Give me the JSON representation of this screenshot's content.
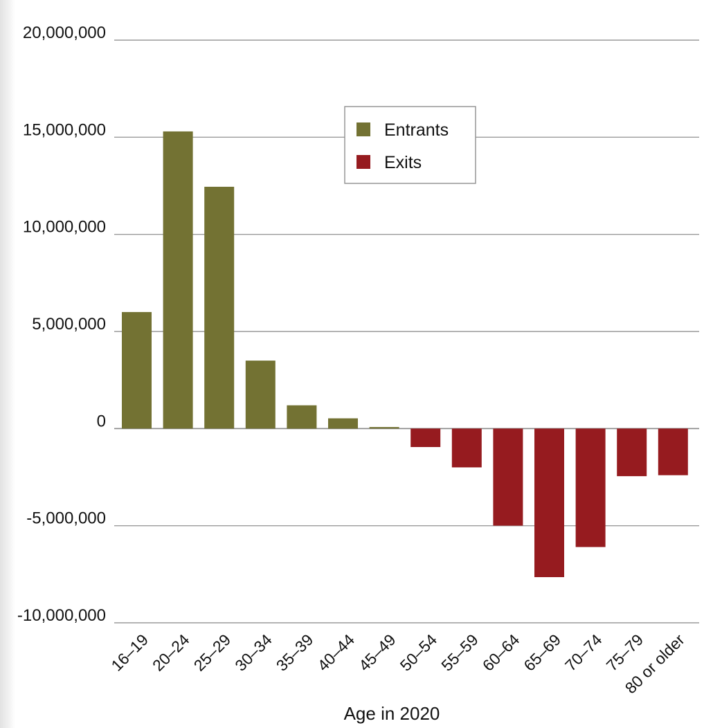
{
  "chart_data": {
    "type": "bar",
    "categories": [
      "16–19",
      "20–24",
      "25–29",
      "30–34",
      "35–39",
      "40–44",
      "45–49",
      "50–54",
      "55–59",
      "60–64",
      "65–69",
      "70–74",
      "75–79",
      "80 or older"
    ],
    "series": [
      {
        "name": "Entrants",
        "color": "#737233",
        "values": [
          6000000,
          15300000,
          12450000,
          3500000,
          1200000,
          530000,
          80000,
          0,
          0,
          0,
          0,
          0,
          0,
          0
        ]
      },
      {
        "name": "Exits",
        "color": "#961b1f",
        "values": [
          0,
          0,
          0,
          0,
          0,
          0,
          0,
          -950000,
          -2000000,
          -5000000,
          -7650000,
          -6100000,
          -2450000,
          -2400000
        ]
      }
    ],
    "xlabel": "Age in 2020",
    "ylabel": "",
    "ylim": [
      -10000000,
      20000000
    ],
    "yticks": [
      20000000,
      15000000,
      10000000,
      5000000,
      0,
      -5000000,
      -10000000
    ],
    "ytick_labels": [
      "20,000,000",
      "15,000,000",
      "10,000,000",
      "5,000,000",
      "0",
      "-5,000,000",
      "-10,000,000"
    ],
    "grid": true,
    "legend_position": "top-center"
  }
}
